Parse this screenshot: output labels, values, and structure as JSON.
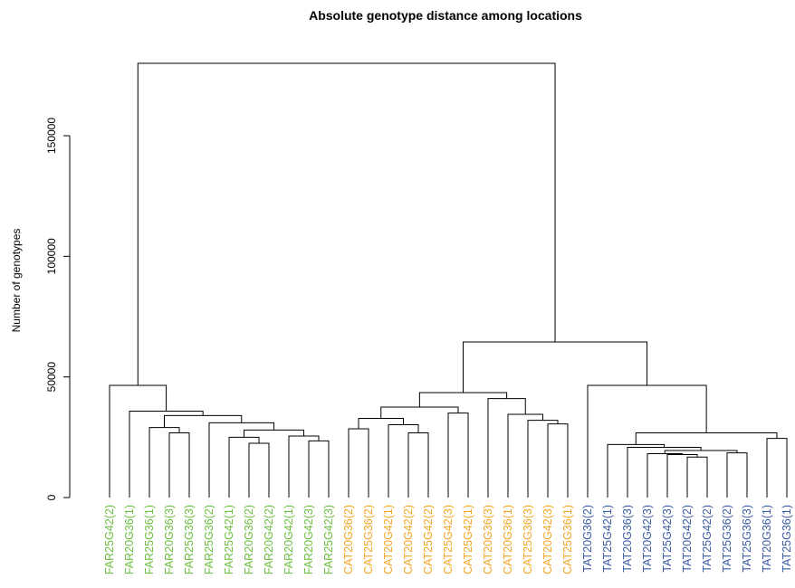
{
  "chart_data": {
    "type": "dendrogram",
    "title": "Absolute genotype distance among locations",
    "ylabel": "Number of genotypes",
    "xlabel": "",
    "ylim": [
      0,
      180000
    ],
    "yticks": [
      0,
      50000,
      100000,
      150000
    ],
    "group_colors": {
      "FAR": "#6cbf3f",
      "CAT": "#f5a623",
      "TAT": "#3b5ba5"
    },
    "leaves": [
      {
        "label": "FAR25G42(2)",
        "group": "FAR"
      },
      {
        "label": "FAR20G36(1)",
        "group": "FAR"
      },
      {
        "label": "FAR25G36(1)",
        "group": "FAR"
      },
      {
        "label": "FAR20G36(3)",
        "group": "FAR"
      },
      {
        "label": "FAR25G36(3)",
        "group": "FAR"
      },
      {
        "label": "FAR25G36(2)",
        "group": "FAR"
      },
      {
        "label": "FAR25G42(1)",
        "group": "FAR"
      },
      {
        "label": "FAR20G36(2)",
        "group": "FAR"
      },
      {
        "label": "FAR20G42(2)",
        "group": "FAR"
      },
      {
        "label": "FAR20G42(1)",
        "group": "FAR"
      },
      {
        "label": "FAR20G42(3)",
        "group": "FAR"
      },
      {
        "label": "FAR25G42(3)",
        "group": "FAR"
      },
      {
        "label": "CAT20G36(2)",
        "group": "CAT"
      },
      {
        "label": "CAT25G36(2)",
        "group": "CAT"
      },
      {
        "label": "CAT20G42(1)",
        "group": "CAT"
      },
      {
        "label": "CAT20G42(2)",
        "group": "CAT"
      },
      {
        "label": "CAT25G42(2)",
        "group": "CAT"
      },
      {
        "label": "CAT25G42(3)",
        "group": "CAT"
      },
      {
        "label": "CAT25G42(1)",
        "group": "CAT"
      },
      {
        "label": "CAT20G36(3)",
        "group": "CAT"
      },
      {
        "label": "CAT20G36(1)",
        "group": "CAT"
      },
      {
        "label": "CAT25G36(3)",
        "group": "CAT"
      },
      {
        "label": "CAT20G42(3)",
        "group": "CAT"
      },
      {
        "label": "CAT25G36(1)",
        "group": "CAT"
      },
      {
        "label": "TAT20G36(2)",
        "group": "TAT"
      },
      {
        "label": "TAT25G42(1)",
        "group": "TAT"
      },
      {
        "label": "TAT20G36(3)",
        "group": "TAT"
      },
      {
        "label": "TAT20G42(3)",
        "group": "TAT"
      },
      {
        "label": "TAT25G42(3)",
        "group": "TAT"
      },
      {
        "label": "TAT20G42(2)",
        "group": "TAT"
      },
      {
        "label": "TAT25G42(2)",
        "group": "TAT"
      },
      {
        "label": "TAT25G36(2)",
        "group": "TAT"
      },
      {
        "label": "TAT25G36(3)",
        "group": "TAT"
      },
      {
        "label": "TAT20G36(1)",
        "group": "TAT"
      },
      {
        "label": "TAT25G36(1)",
        "group": "TAT"
      }
    ],
    "merges": [
      {
        "left": 10,
        "right": 11,
        "height": 23500
      },
      {
        "left": 9,
        "right": -1,
        "height": 25500
      },
      {
        "left": 7,
        "right": 8,
        "height": 22500
      },
      {
        "left": 6,
        "right": -3,
        "height": 25000
      },
      {
        "left": -4,
        "right": -2,
        "height": 28000
      },
      {
        "left": 5,
        "right": -5,
        "height": 31000
      },
      {
        "left": 3,
        "right": 4,
        "height": 26800
      },
      {
        "left": 2,
        "right": -7,
        "height": 29000
      },
      {
        "left": -8,
        "right": -6,
        "height": 34000
      },
      {
        "left": 1,
        "right": -9,
        "height": 35800
      },
      {
        "left": 0,
        "right": -10,
        "height": 46500
      },
      {
        "left": 12,
        "right": 13,
        "height": 28500
      },
      {
        "left": 15,
        "right": 16,
        "height": 26800
      },
      {
        "left": 14,
        "right": -13,
        "height": 30200
      },
      {
        "left": -12,
        "right": -14,
        "height": 32800
      },
      {
        "left": 17,
        "right": 18,
        "height": 35000
      },
      {
        "left": -15,
        "right": -16,
        "height": 37500
      },
      {
        "left": 22,
        "right": 23,
        "height": 30500
      },
      {
        "left": 21,
        "right": -18,
        "height": 32000
      },
      {
        "left": 20,
        "right": -19,
        "height": 34500
      },
      {
        "left": 19,
        "right": -20,
        "height": 41000
      },
      {
        "left": -17,
        "right": -21,
        "height": 43500
      },
      {
        "left": 29,
        "right": 30,
        "height": 16800
      },
      {
        "left": 28,
        "right": -23,
        "height": 17800
      },
      {
        "left": 27,
        "right": -24,
        "height": 18200
      },
      {
        "left": 31,
        "right": 32,
        "height": 18500
      },
      {
        "left": -25,
        "right": -26,
        "height": 19500
      },
      {
        "left": 26,
        "right": -27,
        "height": 20800
      },
      {
        "left": 25,
        "right": -28,
        "height": 22000
      },
      {
        "left": 33,
        "right": 34,
        "height": 24500
      },
      {
        "left": -29,
        "right": -30,
        "height": 26800
      },
      {
        "left": 24,
        "right": -31,
        "height": 46500
      },
      {
        "left": -22,
        "right": -32,
        "height": 64500
      },
      {
        "left": -11,
        "right": -33,
        "height": 180000
      }
    ]
  }
}
